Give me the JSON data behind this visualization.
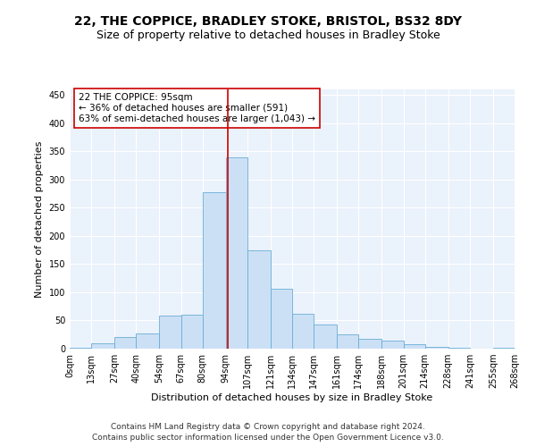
{
  "title1": "22, THE COPPICE, BRADLEY STOKE, BRISTOL, BS32 8DY",
  "title2": "Size of property relative to detached houses in Bradley Stoke",
  "xlabel": "Distribution of detached houses by size in Bradley Stoke",
  "ylabel": "Number of detached properties",
  "annotation_line1": "22 THE COPPICE: 95sqm",
  "annotation_line2": "← 36% of detached houses are smaller (591)",
  "annotation_line3": "63% of semi-detached houses are larger (1,043) →",
  "footer1": "Contains HM Land Registry data © Crown copyright and database right 2024.",
  "footer2": "Contains public sector information licensed under the Open Government Licence v3.0.",
  "property_size": 95,
  "bar_color": "#cce0f5",
  "bar_edge_color": "#6aaed6",
  "vline_color": "#cc0000",
  "annotation_box_color": "#cc0000",
  "bin_edges": [
    0,
    13,
    27,
    40,
    54,
    67,
    80,
    94,
    107,
    121,
    134,
    147,
    161,
    174,
    188,
    201,
    214,
    228,
    241,
    255,
    268
  ],
  "bar_heights": [
    2,
    10,
    20,
    27,
    58,
    60,
    278,
    340,
    175,
    107,
    62,
    43,
    25,
    18,
    15,
    8,
    3,
    1,
    0,
    1
  ],
  "ylim": [
    0,
    460
  ],
  "yticks": [
    0,
    50,
    100,
    150,
    200,
    250,
    300,
    350,
    400,
    450
  ],
  "background_color": "#eaf2fb",
  "grid_color": "#ffffff",
  "title_fontsize": 10,
  "subtitle_fontsize": 9,
  "label_fontsize": 8,
  "tick_fontsize": 7,
  "annotation_fontsize": 7.5,
  "footer_fontsize": 6.5
}
